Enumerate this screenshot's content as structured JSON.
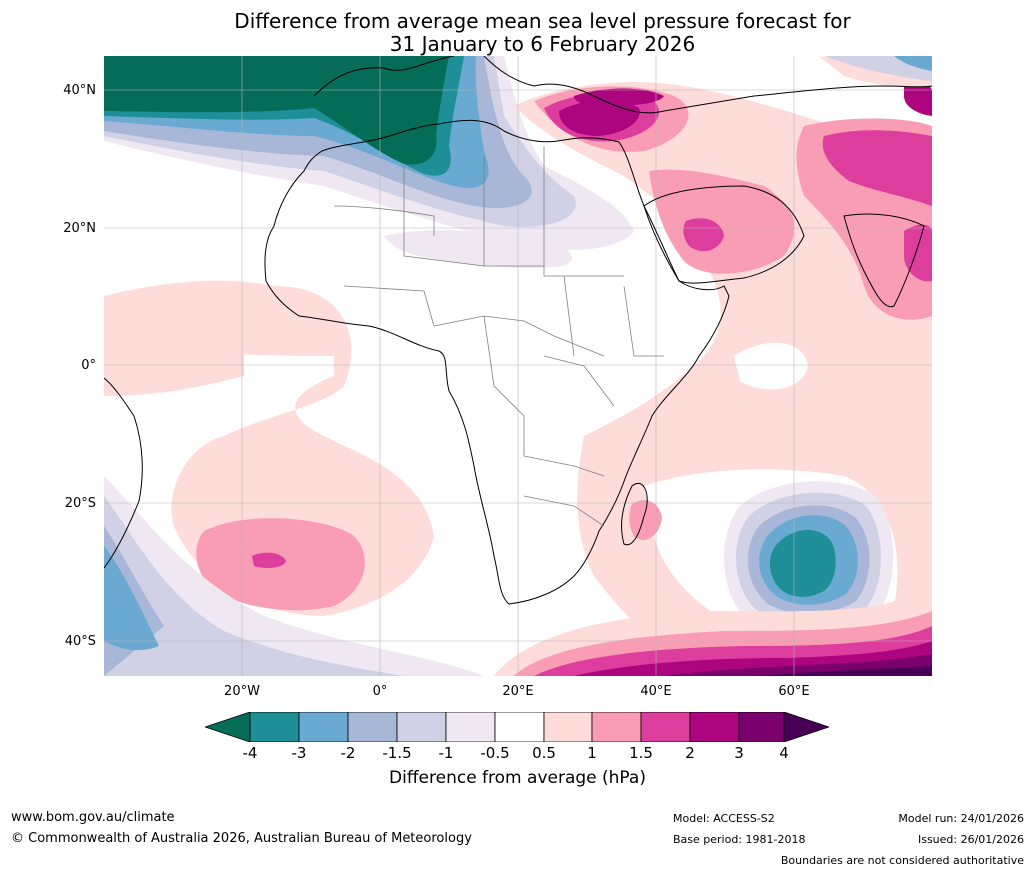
{
  "title": {
    "line1": "Difference from average mean sea level pressure forecast for",
    "line2": "31 January to 6 February 2026"
  },
  "axes": {
    "lat_labels": [
      "40°N",
      "20°N",
      "0°",
      "20°S",
      "40°S"
    ],
    "lon_labels": [
      "20°W",
      "0°",
      "20°E",
      "40°E",
      "60°E"
    ]
  },
  "colorbar": {
    "ticks": [
      "-4",
      "-3",
      "-2",
      "-1.5",
      "-1",
      "-0.5",
      "0.5",
      "1",
      "1.5",
      "2",
      "3",
      "4"
    ],
    "colors": [
      "#046c57",
      "#1e8f96",
      "#6aaad2",
      "#a8b7d7",
      "#d1d1e5",
      "#efe8f2",
      "#ffffff",
      "#fddcd9",
      "#f99db5",
      "#dd3d9d",
      "#ad047f",
      "#79006d",
      "#470056"
    ],
    "label": "Difference from average (hPa)"
  },
  "footer": {
    "website": "www.bom.gov.au/climate",
    "copyright": "© Commonwealth of Australia 2026, Australian Bureau of Meteorology",
    "model": "Model: ACCESS-S2",
    "base_period": "Base period: 1981-2018",
    "model_run": "Model run: 24/01/2026",
    "issued": "Issued: 26/01/2026",
    "disclaimer": "Boundaries are not considered authoritative"
  }
}
